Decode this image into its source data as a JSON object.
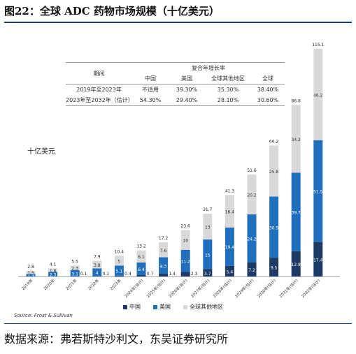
{
  "page": {
    "title": "图22：全球 ADC 药物市场规模（十亿美元）",
    "footer_source": "数据来源：弗若斯特沙利文，东吴证券研究所"
  },
  "growth_table": {
    "header_period": "期间",
    "header_cagr": "复合年增长率",
    "columns": [
      "中国",
      "美国",
      "全球其他地区",
      "全球"
    ],
    "rows": [
      {
        "period": "2019年至2023年",
        "values": [
          "不适用",
          "39.30%",
          "35.30%",
          "38.40%"
        ]
      },
      {
        "period": "2023年至2032年（估计）",
        "values": [
          "54.30%",
          "29.40%",
          "28.10%",
          "30.60%"
        ]
      }
    ]
  },
  "chart_data": {
    "type": "bar",
    "stacked": true,
    "ylabel": "十亿美元",
    "categories": [
      "2019年",
      "2020年",
      "2021年",
      "2022年",
      "2023年",
      "2024年(估计)",
      "2025年(估计)",
      "2026年(估计)",
      "2027年(估计)",
      "2028年(估计)",
      "2029年(估计)",
      "2030年(估计)",
      "2031年(估计)",
      "2032年(估计)"
    ],
    "series": [
      {
        "name": "中国",
        "color": "#1c3a66",
        "values": [
          0,
          0,
          0.1,
          0.1,
          0.4,
          0.7,
          1.4,
          2.3,
          3.7,
          5.4,
          7.2,
          9.5,
          12.8,
          17.4
        ],
        "labels": [
          "",
          "",
          "0.1",
          "0.1",
          "0.4",
          "0.7",
          "1.4",
          "2.3",
          "3.7",
          "5.4",
          "7.2",
          "9.5",
          "12.8",
          "17.4"
        ]
      },
      {
        "name": "美国",
        "color": "#1f6fbf",
        "values": [
          1.3,
          2.3,
          3.1,
          4.0,
          5.1,
          6.4,
          8.3,
          11.2,
          15,
          19.4,
          24.2,
          30.9,
          39.7,
          51.5
        ],
        "labels": [
          "1.3",
          "2.3",
          "3.1",
          "4",
          "5.1",
          "6.4",
          "8.3",
          "11.2",
          "15",
          "19.4",
          "24.2",
          "30.9",
          "39.7",
          "51.5"
        ]
      },
      {
        "name": "全球其他地区",
        "color": "#d9d9d9",
        "values": [
          1.5,
          1.8,
          2.3,
          3.8,
          5,
          6.1,
          7.6,
          10,
          13,
          16.4,
          20.2,
          25.8,
          34.2,
          46.2
        ],
        "labels": [
          "1.5",
          "1.8",
          "2.3",
          "3.8",
          "5",
          "6.1",
          "7.6",
          "10",
          "13",
          "16.4",
          "20.2",
          "25.8",
          "34.2",
          "46.2"
        ]
      }
    ],
    "totals": [
      "2.8",
      "4.1",
      "5.5",
      "7.9",
      "10.4",
      "13.2",
      "17.2",
      "23.6",
      "31.7",
      "41.3",
      "51.6",
      "66.2",
      "86.8",
      "115.1"
    ],
    "source_note": "Source:  Frost & Sullivan"
  }
}
